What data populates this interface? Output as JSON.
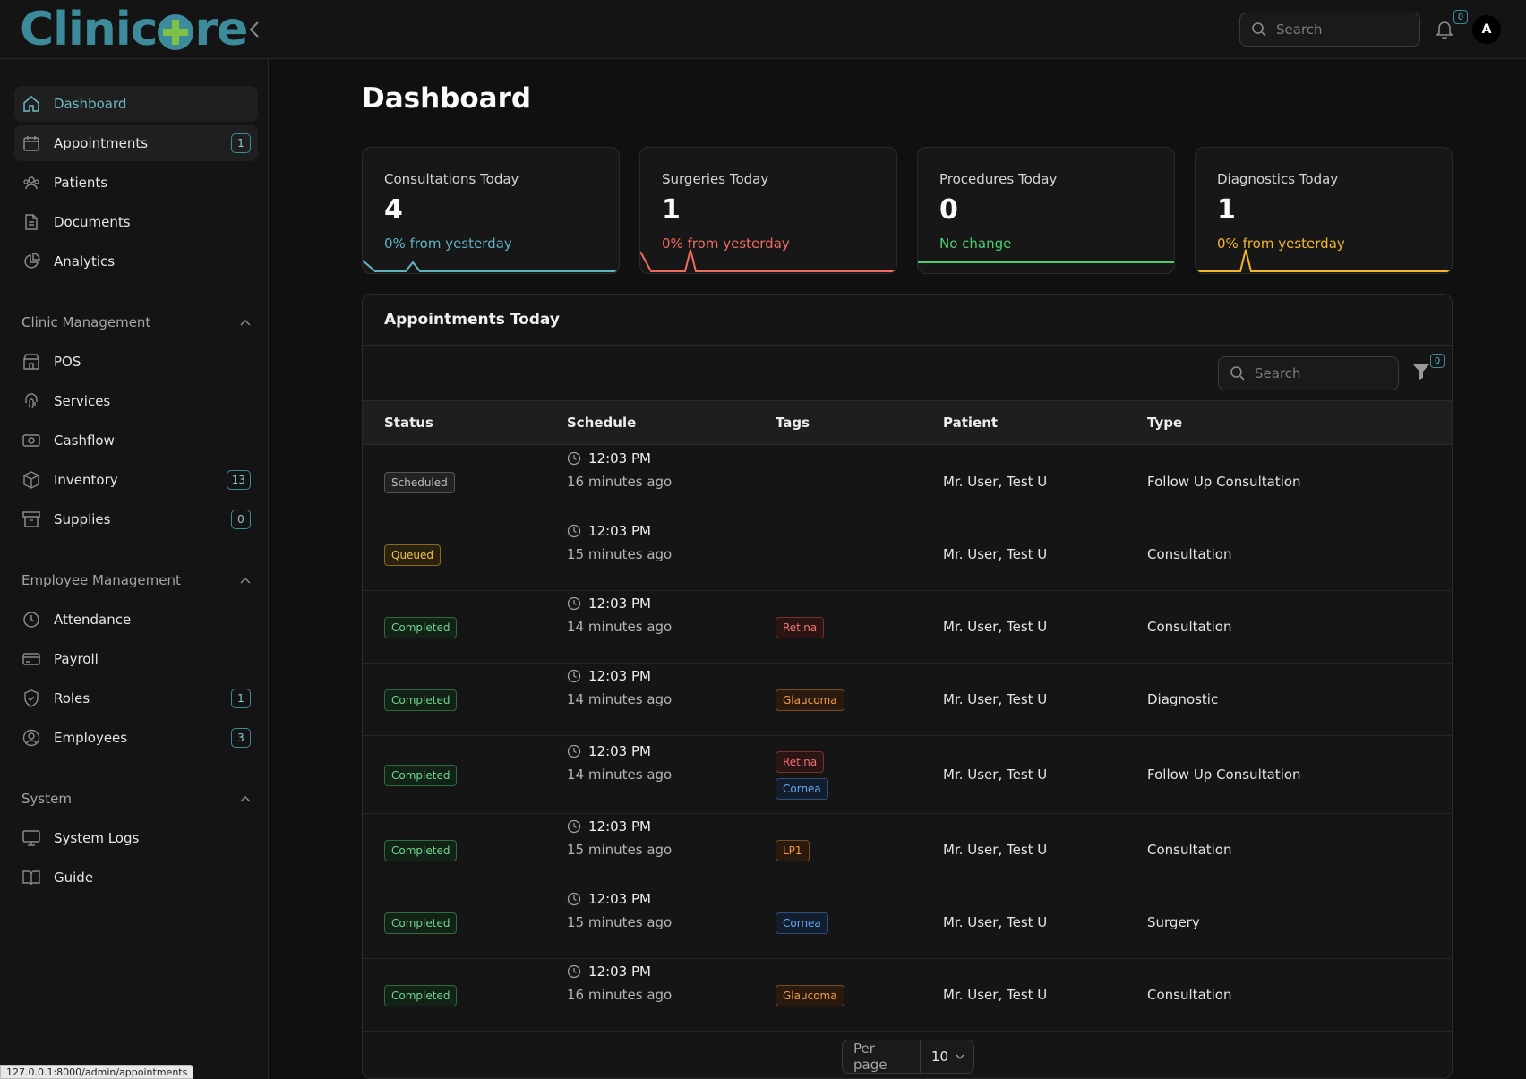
{
  "app": {
    "logo_text_left": "Clinic",
    "logo_text_right": "re"
  },
  "header": {
    "search_placeholder": "Search",
    "notification_count": "0",
    "avatar_initial": "A"
  },
  "sidebar": {
    "items": [
      {
        "label": "Dashboard",
        "icon": "home-icon"
      },
      {
        "label": "Appointments",
        "icon": "calendar-icon",
        "badge": "1"
      },
      {
        "label": "Patients",
        "icon": "users-icon"
      },
      {
        "label": "Documents",
        "icon": "document-icon"
      },
      {
        "label": "Analytics",
        "icon": "pie-chart-icon"
      }
    ],
    "clinic_management": {
      "title": "Clinic Management",
      "items": [
        {
          "label": "POS",
          "icon": "store-icon"
        },
        {
          "label": "Services",
          "icon": "fingerprint-icon"
        },
        {
          "label": "Cashflow",
          "icon": "cash-icon"
        },
        {
          "label": "Inventory",
          "icon": "box-icon",
          "badge": "13"
        },
        {
          "label": "Supplies",
          "icon": "archive-icon",
          "badge": "0"
        }
      ]
    },
    "employee_management": {
      "title": "Employee Management",
      "items": [
        {
          "label": "Attendance",
          "icon": "clock-icon"
        },
        {
          "label": "Payroll",
          "icon": "credit-card-icon"
        },
        {
          "label": "Roles",
          "icon": "shield-icon",
          "badge": "1"
        },
        {
          "label": "Employees",
          "icon": "user-circle-icon",
          "badge": "3"
        }
      ]
    },
    "system": {
      "title": "System",
      "items": [
        {
          "label": "System Logs",
          "icon": "monitor-icon"
        },
        {
          "label": "Guide",
          "icon": "book-icon"
        }
      ]
    }
  },
  "main": {
    "title": "Dashboard",
    "stats": [
      {
        "label": "Consultations Today",
        "value": "4",
        "delta": "0% from yesterday",
        "color": "#5fb3c3"
      },
      {
        "label": "Surgeries Today",
        "value": "1",
        "delta": "0% from yesterday",
        "color": "#f06a5e"
      },
      {
        "label": "Procedures Today",
        "value": "0",
        "delta": "No change",
        "color": "#4ccf6e"
      },
      {
        "label": "Diagnostics Today",
        "value": "1",
        "delta": "0% from yesterday",
        "color": "#f3b62e"
      }
    ],
    "appointments": {
      "title": "Appointments Today",
      "search_placeholder": "Search",
      "filter_count": "0",
      "columns": [
        "Status",
        "Schedule",
        "Tags",
        "Patient",
        "Type"
      ],
      "rows": [
        {
          "status": "Scheduled",
          "time": "12:03 PM",
          "ago": "16 minutes ago",
          "tags": [],
          "patient": "Mr. User, Test U",
          "type": "Follow Up Consultation"
        },
        {
          "status": "Queued",
          "time": "12:03 PM",
          "ago": "15 minutes ago",
          "tags": [],
          "patient": "Mr. User, Test U",
          "type": "Consultation"
        },
        {
          "status": "Completed",
          "time": "12:03 PM",
          "ago": "14 minutes ago",
          "tags": [
            "Retina"
          ],
          "patient": "Mr. User, Test U",
          "type": "Consultation"
        },
        {
          "status": "Completed",
          "time": "12:03 PM",
          "ago": "14 minutes ago",
          "tags": [
            "Glaucoma"
          ],
          "patient": "Mr. User, Test U",
          "type": "Diagnostic"
        },
        {
          "status": "Completed",
          "time": "12:03 PM",
          "ago": "14 minutes ago",
          "tags": [
            "Retina",
            "Cornea"
          ],
          "patient": "Mr. User, Test U",
          "type": "Follow Up Consultation"
        },
        {
          "status": "Completed",
          "time": "12:03 PM",
          "ago": "15 minutes ago",
          "tags": [
            "LP1"
          ],
          "patient": "Mr. User, Test U",
          "type": "Consultation"
        },
        {
          "status": "Completed",
          "time": "12:03 PM",
          "ago": "15 minutes ago",
          "tags": [
            "Cornea"
          ],
          "patient": "Mr. User, Test U",
          "type": "Surgery"
        },
        {
          "status": "Completed",
          "time": "12:03 PM",
          "ago": "16 minutes ago",
          "tags": [
            "Glaucoma"
          ],
          "patient": "Mr. User, Test U",
          "type": "Consultation"
        }
      ],
      "per_page_label": "Per page",
      "per_page_value": "10"
    }
  },
  "browser_status_url": "127.0.0.1:8000/admin/appointments"
}
